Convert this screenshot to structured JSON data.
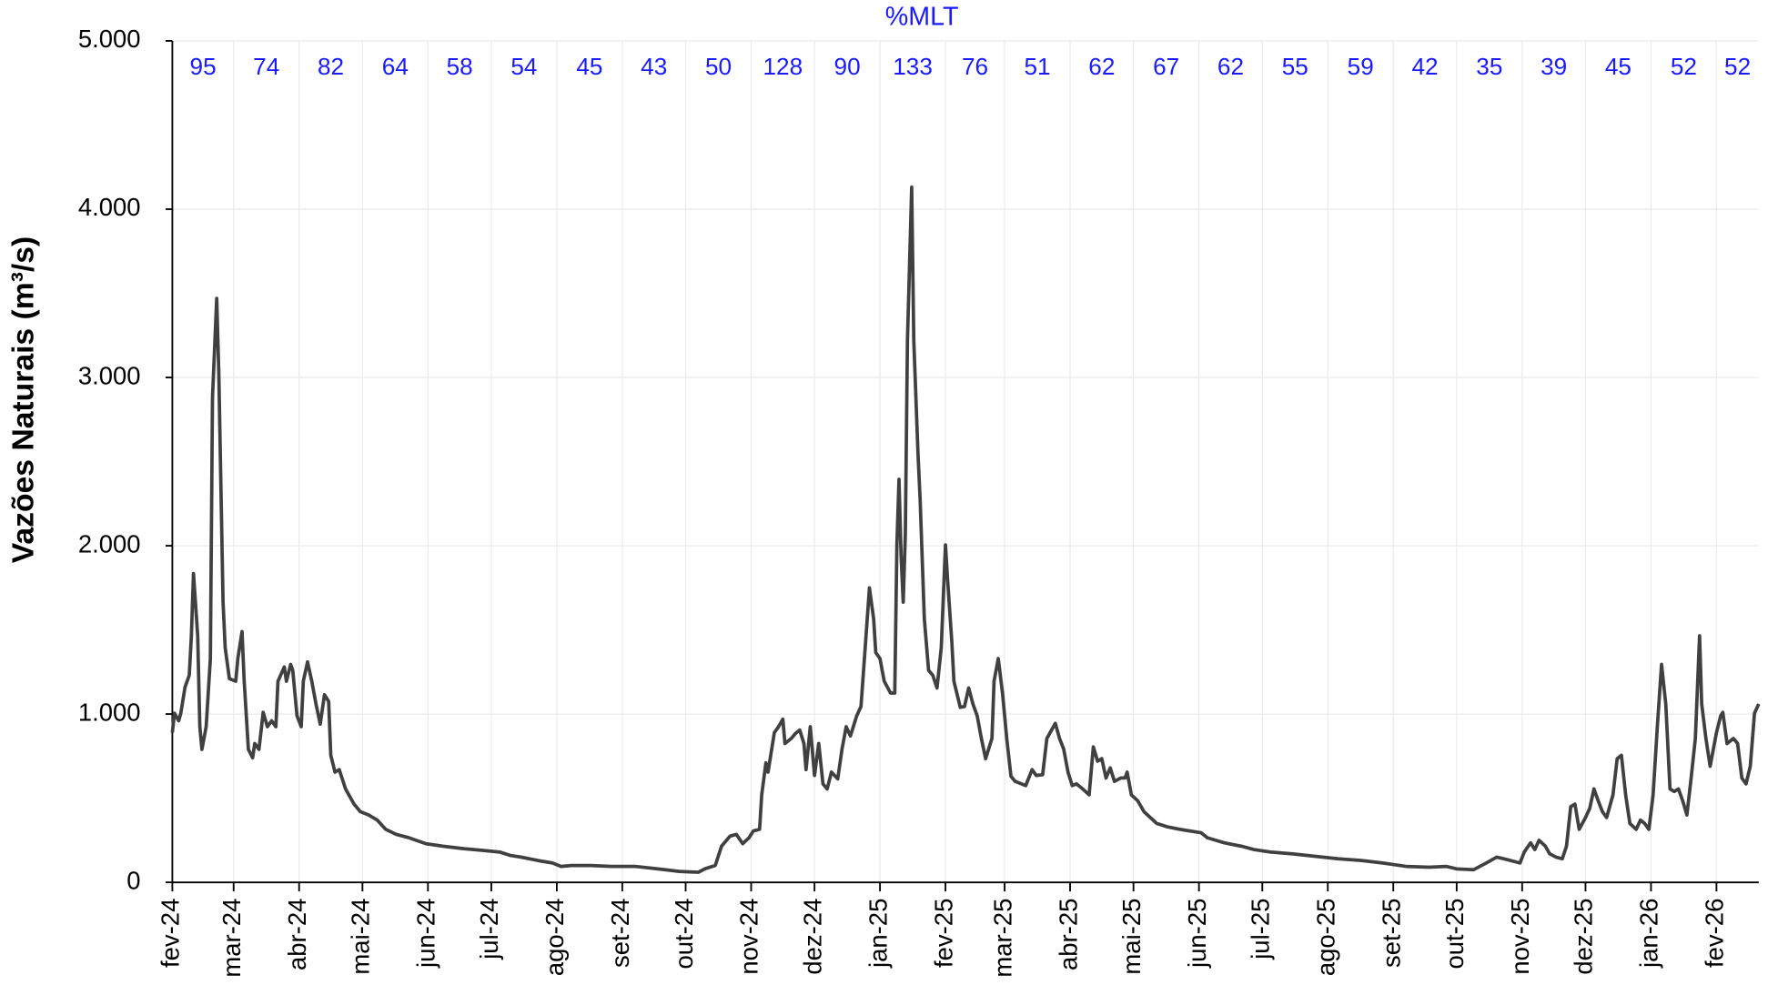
{
  "chart_data": {
    "type": "line",
    "y_label": "Vazões Naturais (m³/s)",
    "xlim": [
      0,
      751
    ],
    "xticks": [
      {
        "value": 0,
        "label": "fev-24"
      },
      {
        "value": 29,
        "label": "mar-24"
      },
      {
        "value": 60,
        "label": "abr-24"
      },
      {
        "value": 90,
        "label": "mai-24"
      },
      {
        "value": 121,
        "label": "jun-24"
      },
      {
        "value": 151,
        "label": "jul-24"
      },
      {
        "value": 182,
        "label": "ago-24"
      },
      {
        "value": 213,
        "label": "set-24"
      },
      {
        "value": 243,
        "label": "out-24"
      },
      {
        "value": 274,
        "label": "nov-24"
      },
      {
        "value": 304,
        "label": "dez-24"
      },
      {
        "value": 335,
        "label": "jan-25"
      },
      {
        "value": 366,
        "label": "fev-25"
      },
      {
        "value": 394,
        "label": "mar-25"
      },
      {
        "value": 425,
        "label": "abr-25"
      },
      {
        "value": 455,
        "label": "mai-25"
      },
      {
        "value": 486,
        "label": "jun-25"
      },
      {
        "value": 516,
        "label": "jul-25"
      },
      {
        "value": 547,
        "label": "ago-25"
      },
      {
        "value": 578,
        "label": "set-25"
      },
      {
        "value": 608,
        "label": "out-25"
      },
      {
        "value": 639,
        "label": "nov-25"
      },
      {
        "value": 669,
        "label": "dez-25"
      },
      {
        "value": 700,
        "label": "jan-26"
      },
      {
        "value": 731,
        "label": "fev-26"
      }
    ],
    "ylim": [
      0,
      5000
    ],
    "yticks": [
      0,
      {
        "value": 1000,
        "label": "1.000"
      },
      {
        "value": 2000,
        "label": "2.000"
      },
      {
        "value": 3000,
        "label": "3.000"
      },
      {
        "value": 4000,
        "label": "4.000"
      },
      {
        "value": 5000,
        "label": "5.000"
      }
    ],
    "grid": true,
    "x": [
      0,
      1,
      3,
      4,
      6,
      8,
      9,
      10,
      12,
      13,
      14,
      16,
      18,
      19,
      21,
      22,
      24,
      25,
      27,
      30,
      31,
      33,
      34,
      36,
      38,
      39,
      41,
      43,
      45,
      47,
      49,
      50,
      53,
      54,
      56,
      57,
      59,
      61,
      62,
      64,
      66,
      68,
      70,
      72,
      74,
      75,
      77,
      79,
      82,
      86,
      89,
      93,
      97,
      101,
      106,
      112,
      120,
      128,
      138,
      147,
      155,
      160,
      165,
      173,
      180,
      184,
      189,
      198,
      208,
      219,
      230,
      240,
      249,
      252,
      257,
      260,
      264,
      267,
      270,
      273,
      275,
      278,
      279,
      281,
      282,
      285,
      287,
      289,
      290,
      293,
      295,
      297,
      299,
      300,
      302,
      304,
      306,
      308,
      310,
      312,
      315,
      317,
      319,
      321,
      324,
      326,
      328,
      330,
      332,
      333,
      335,
      337,
      340,
      342,
      343,
      344,
      345,
      346,
      347,
      348,
      350,
      351,
      353,
      354,
      356,
      358,
      360,
      362,
      364,
      366,
      367,
      369,
      370,
      373,
      375,
      377,
      379,
      381,
      383,
      385,
      388,
      389,
      391,
      393,
      395,
      397,
      399,
      402,
      404,
      407,
      409,
      412,
      414,
      418,
      420,
      422,
      424,
      426,
      428,
      431,
      434,
      436,
      438,
      440,
      442,
      444,
      446,
      449,
      451,
      452,
      454,
      457,
      460,
      466,
      471,
      477,
      482,
      487,
      490,
      498,
      506,
      512,
      520,
      530,
      541,
      552,
      563,
      573,
      584,
      595,
      603,
      608,
      616,
      622,
      627,
      632,
      638,
      640,
      643,
      645,
      647,
      650,
      652,
      655,
      658,
      660,
      662,
      664,
      666,
      669,
      671,
      673,
      675,
      677,
      679,
      682,
      684,
      686,
      688,
      690,
      693,
      695,
      697,
      699,
      701,
      703,
      705,
      707,
      709,
      711,
      713,
      715,
      717,
      719,
      721,
      723,
      724,
      726,
      728,
      731,
      733,
      734,
      736,
      739,
      741,
      743,
      745,
      747,
      749,
      751
    ],
    "series": [
      {
        "color": "#404040",
        "values": [
          890,
          1005,
          960,
          1005,
          1160,
          1230,
          1465,
          1835,
          1465,
          925,
          790,
          925,
          1330,
          2880,
          3470,
          3020,
          1665,
          1395,
          1210,
          1195,
          1330,
          1490,
          1195,
          790,
          740,
          825,
          790,
          1010,
          925,
          960,
          925,
          1195,
          1280,
          1195,
          1295,
          1260,
          990,
          925,
          1195,
          1310,
          1195,
          1060,
          940,
          1115,
          1075,
          755,
          655,
          670,
          555,
          465,
          420,
          400,
          370,
          315,
          285,
          265,
          230,
          215,
          200,
          190,
          180,
          160,
          150,
          130,
          115,
          95,
          100,
          100,
          95,
          95,
          80,
          65,
          60,
          80,
          100,
          215,
          275,
          285,
          230,
          265,
          305,
          315,
          520,
          710,
          655,
          890,
          925,
          970,
          825,
          855,
          885,
          905,
          825,
          670,
          925,
          635,
          825,
          585,
          555,
          655,
          615,
          790,
          925,
          870,
          990,
          1045,
          1395,
          1750,
          1565,
          1365,
          1330,
          1195,
          1125,
          1125,
          2005,
          2395,
          1935,
          1665,
          2070,
          3220,
          4130,
          3220,
          2545,
          2275,
          1565,
          1260,
          1230,
          1155,
          1395,
          2005,
          1800,
          1430,
          1195,
          1040,
          1045,
          1155,
          1060,
          990,
          855,
          735,
          855,
          1195,
          1330,
          1125,
          855,
          630,
          600,
          585,
          575,
          670,
          635,
          640,
          855,
          945,
          855,
          790,
          655,
          575,
          585,
          555,
          520,
          805,
          720,
          735,
          620,
          680,
          600,
          620,
          620,
          655,
          520,
          485,
          420,
          350,
          330,
          315,
          305,
          295,
          265,
          235,
          215,
          195,
          180,
          170,
          155,
          140,
          130,
          115,
          95,
          90,
          95,
          80,
          75,
          115,
          150,
          135,
          115,
          180,
          235,
          195,
          250,
          215,
          170,
          150,
          140,
          215,
          450,
          465,
          315,
          385,
          440,
          555,
          485,
          420,
          385,
          520,
          735,
          755,
          520,
          350,
          315,
          370,
          350,
          315,
          520,
          925,
          1295,
          1060,
          555,
          540,
          555,
          485,
          400,
          620,
          855,
          1465,
          1060,
          855,
          690,
          890,
          990,
          1010,
          825,
          855,
          825,
          620,
          585,
          690,
          1005,
          1060
        ]
      }
    ],
    "mlt": {
      "title": "%MLT",
      "color": "#1a1aff",
      "values": [
        95,
        74,
        82,
        64,
        58,
        54,
        45,
        43,
        50,
        128,
        90,
        133,
        76,
        51,
        62,
        67,
        62,
        55,
        59,
        42,
        35,
        39,
        45,
        52,
        52
      ]
    }
  }
}
